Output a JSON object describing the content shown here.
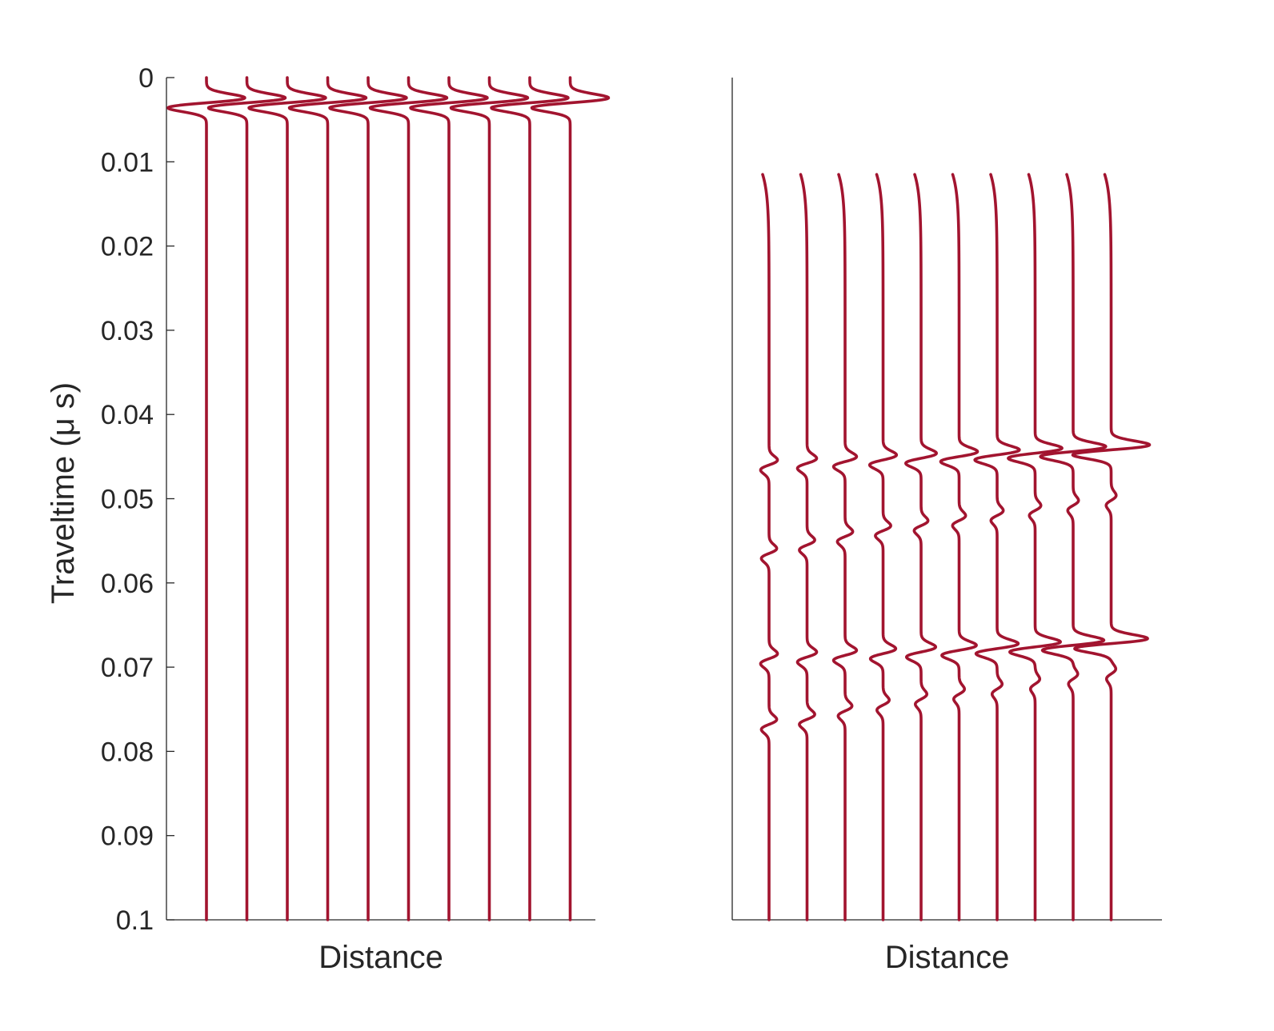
{
  "chart_data": [
    {
      "type": "line",
      "title": "",
      "xlabel": "Distance",
      "ylabel": "Traveltime ($\\mu$ s)",
      "y_reversed": true,
      "ylim": [
        0,
        0.1
      ],
      "yticks": [
        0,
        0.01,
        0.02,
        0.03,
        0.04,
        0.05,
        0.06,
        0.07,
        0.08,
        0.09,
        0.1
      ],
      "ytick_labels": [
        "0",
        "0.01",
        "0.02",
        "0.03",
        "0.04",
        "0.05",
        "0.06",
        "0.07",
        "0.08",
        "0.09",
        "0.1"
      ],
      "xticks_visible": false,
      "grid": false,
      "trace_count": 10,
      "color": "#A2142F",
      "series": [
        {
          "events": [
            {
              "t": 0.003,
              "amp": 1.0,
              "width": 0.0006
            }
          ],
          "trace_start": 0.0
        },
        {
          "events": [
            {
              "t": 0.003,
              "amp": 1.0,
              "width": 0.0006
            }
          ],
          "trace_start": 0.0
        },
        {
          "events": [
            {
              "t": 0.003,
              "amp": 1.0,
              "width": 0.0006
            }
          ],
          "trace_start": 0.0
        },
        {
          "events": [
            {
              "t": 0.003,
              "amp": 1.0,
              "width": 0.0006
            }
          ],
          "trace_start": 0.0
        },
        {
          "events": [
            {
              "t": 0.003,
              "amp": 1.0,
              "width": 0.0006
            }
          ],
          "trace_start": 0.0
        },
        {
          "events": [
            {
              "t": 0.003,
              "amp": 1.0,
              "width": 0.0006
            }
          ],
          "trace_start": 0.0
        },
        {
          "events": [
            {
              "t": 0.003,
              "amp": 1.0,
              "width": 0.0006
            }
          ],
          "trace_start": 0.0
        },
        {
          "events": [
            {
              "t": 0.003,
              "amp": 1.0,
              "width": 0.0006
            }
          ],
          "trace_start": 0.0
        },
        {
          "events": [
            {
              "t": 0.003,
              "amp": 1.0,
              "width": 0.0006
            }
          ],
          "trace_start": 0.0
        },
        {
          "events": [
            {
              "t": 0.003,
              "amp": 1.0,
              "width": 0.0006
            }
          ],
          "trace_start": 0.0
        }
      ]
    },
    {
      "type": "line",
      "title": "",
      "xlabel": "Distance",
      "ylabel": "",
      "y_reversed": true,
      "ylim": [
        0,
        0.1
      ],
      "yticks_visible": false,
      "xticks_visible": false,
      "grid": false,
      "trace_count": 10,
      "color": "#A2142F",
      "series": [
        {
          "trace_start": 0.0115,
          "events": [
            {
              "t": 0.046,
              "amp": 0.22,
              "width": 0.0006
            },
            {
              "t": 0.0565,
              "amp": 0.2,
              "width": 0.0006
            },
            {
              "t": 0.069,
              "amp": 0.22,
              "width": 0.0006
            },
            {
              "t": 0.0768,
              "amp": 0.2,
              "width": 0.0006
            }
          ]
        },
        {
          "trace_start": 0.0115,
          "events": [
            {
              "t": 0.0458,
              "amp": 0.25,
              "width": 0.0006
            },
            {
              "t": 0.0555,
              "amp": 0.2,
              "width": 0.0006
            },
            {
              "t": 0.0688,
              "amp": 0.25,
              "width": 0.0006
            },
            {
              "t": 0.0762,
              "amp": 0.2,
              "width": 0.0006
            }
          ]
        },
        {
          "trace_start": 0.0115,
          "events": [
            {
              "t": 0.0456,
              "amp": 0.3,
              "width": 0.0006
            },
            {
              "t": 0.0545,
              "amp": 0.2,
              "width": 0.0006
            },
            {
              "t": 0.0686,
              "amp": 0.3,
              "width": 0.0006
            },
            {
              "t": 0.0752,
              "amp": 0.18,
              "width": 0.0006
            }
          ]
        },
        {
          "trace_start": 0.0115,
          "events": [
            {
              "t": 0.0454,
              "amp": 0.35,
              "width": 0.0006
            },
            {
              "t": 0.0538,
              "amp": 0.2,
              "width": 0.0006
            },
            {
              "t": 0.0684,
              "amp": 0.33,
              "width": 0.0006
            },
            {
              "t": 0.0745,
              "amp": 0.16,
              "width": 0.0006
            }
          ]
        },
        {
          "trace_start": 0.0115,
          "events": [
            {
              "t": 0.0452,
              "amp": 0.4,
              "width": 0.0006
            },
            {
              "t": 0.0532,
              "amp": 0.18,
              "width": 0.0006
            },
            {
              "t": 0.0682,
              "amp": 0.38,
              "width": 0.0006
            },
            {
              "t": 0.0738,
              "amp": 0.15,
              "width": 0.0006
            }
          ]
        },
        {
          "trace_start": 0.0115,
          "events": [
            {
              "t": 0.045,
              "amp": 0.48,
              "width": 0.0006
            },
            {
              "t": 0.0526,
              "amp": 0.17,
              "width": 0.0006
            },
            {
              "t": 0.068,
              "amp": 0.45,
              "width": 0.0006
            },
            {
              "t": 0.0732,
              "amp": 0.14,
              "width": 0.0006
            }
          ]
        },
        {
          "trace_start": 0.0115,
          "events": [
            {
              "t": 0.0448,
              "amp": 0.58,
              "width": 0.0006
            },
            {
              "t": 0.052,
              "amp": 0.16,
              "width": 0.0006
            },
            {
              "t": 0.0678,
              "amp": 0.55,
              "width": 0.0006
            },
            {
              "t": 0.0726,
              "amp": 0.13,
              "width": 0.0006
            }
          ]
        },
        {
          "trace_start": 0.0115,
          "events": [
            {
              "t": 0.0446,
              "amp": 0.7,
              "width": 0.0006
            },
            {
              "t": 0.0514,
              "amp": 0.15,
              "width": 0.0006
            },
            {
              "t": 0.0676,
              "amp": 0.66,
              "width": 0.0006
            },
            {
              "t": 0.072,
              "amp": 0.12,
              "width": 0.0006
            }
          ]
        },
        {
          "trace_start": 0.0115,
          "events": [
            {
              "t": 0.0444,
              "amp": 0.85,
              "width": 0.0006
            },
            {
              "t": 0.0508,
              "amp": 0.14,
              "width": 0.0006
            },
            {
              "t": 0.0674,
              "amp": 0.8,
              "width": 0.0006
            },
            {
              "t": 0.0714,
              "amp": 0.12,
              "width": 0.0006
            }
          ]
        },
        {
          "trace_start": 0.0115,
          "events": [
            {
              "t": 0.0442,
              "amp": 1.0,
              "width": 0.0006
            },
            {
              "t": 0.0502,
              "amp": 0.13,
              "width": 0.0006
            },
            {
              "t": 0.0672,
              "amp": 0.95,
              "width": 0.0006
            },
            {
              "t": 0.0708,
              "amp": 0.12,
              "width": 0.0006
            }
          ]
        }
      ]
    }
  ]
}
